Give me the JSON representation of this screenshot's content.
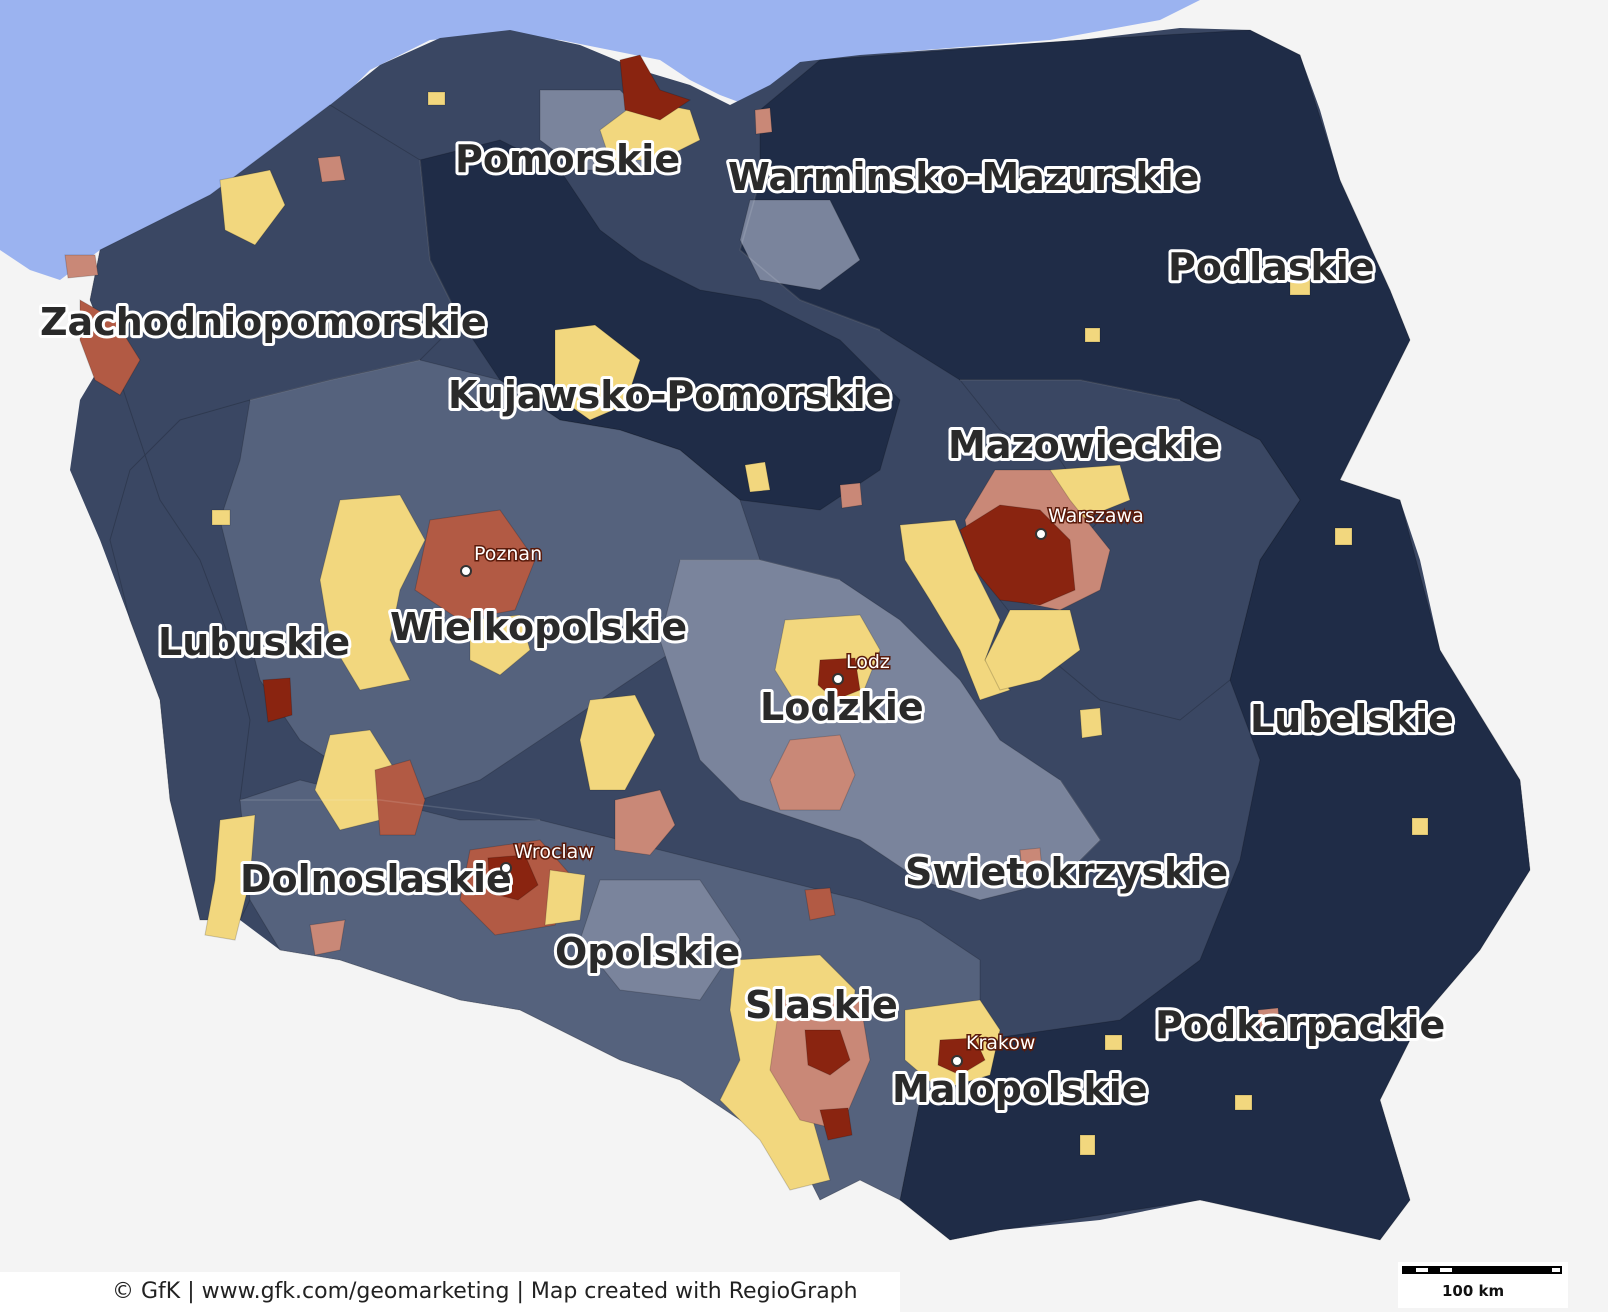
{
  "map": {
    "colors": {
      "sea": "#9bb3f0",
      "land_outside": "#f4f4f4",
      "border": "#c9c9c9",
      "class_1": "#1f2c47",
      "class_2": "#3a4763",
      "class_3": "#55627d",
      "class_4": "#7a849c",
      "class_5": "#f2d77e",
      "class_6": "#c98877",
      "class_7": "#b25a44",
      "class_8": "#8a2410"
    },
    "regions": [
      {
        "name": "Pomorskie"
      },
      {
        "name": "Warminsko-Mazurskie"
      },
      {
        "name": "Podlaskie"
      },
      {
        "name": "Zachodniopomorskie"
      },
      {
        "name": "Kujawsko-Pomorskie"
      },
      {
        "name": "Mazowieckie"
      },
      {
        "name": "Lubuskie"
      },
      {
        "name": "Wielkopolskie"
      },
      {
        "name": "Lodzkie"
      },
      {
        "name": "Lubelskie"
      },
      {
        "name": "Dolnoslaskie"
      },
      {
        "name": "Swietokrzyskie"
      },
      {
        "name": "Opolskie"
      },
      {
        "name": "Slaskie"
      },
      {
        "name": "Podkarpackie"
      },
      {
        "name": "Malopolskie"
      }
    ],
    "cities": [
      {
        "name": "Warszawa"
      },
      {
        "name": "Poznan"
      },
      {
        "name": "Lodz"
      },
      {
        "name": "Wroclaw"
      },
      {
        "name": "Krakow"
      }
    ]
  },
  "credit": "© GfK | www.gfk.com/geomarketing | Map created with RegioGraph",
  "scale": {
    "label": "100 km"
  }
}
